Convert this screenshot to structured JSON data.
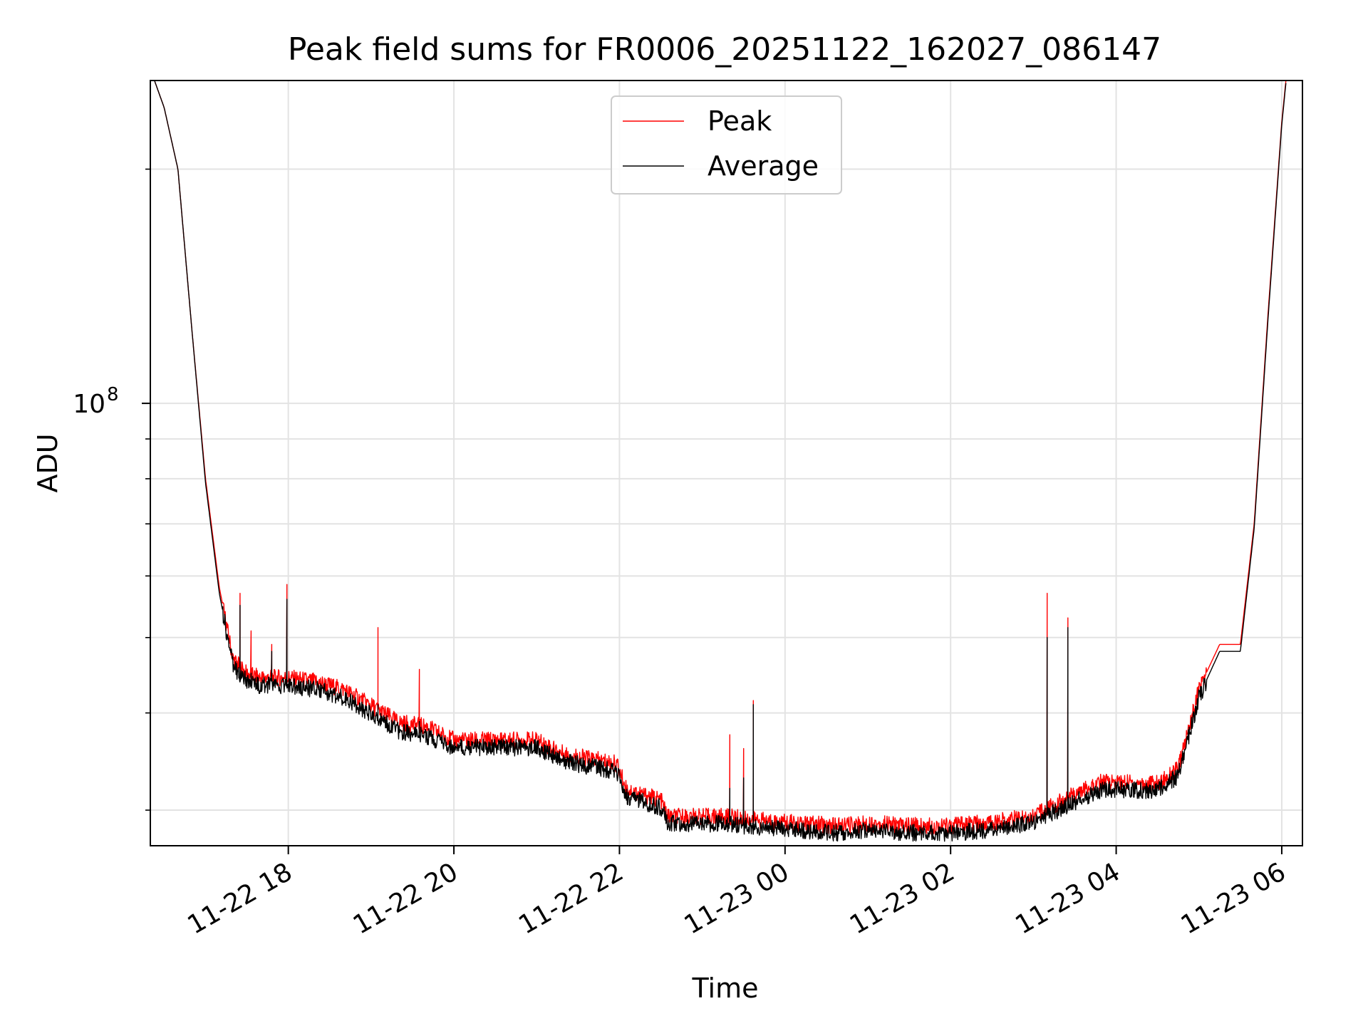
{
  "chart_data": {
    "type": "line",
    "title": "Peak field sums for FR0006_20251122_162027_086147",
    "xlabel": "Time",
    "ylabel": "ADU",
    "y_scale": "log",
    "ylim": [
      27000000,
      260000000
    ],
    "xlim": [
      "2025-11-22 16:20",
      "2025-11-23 06:15"
    ],
    "grid": true,
    "legend_position": "top-center",
    "x_ticks": [
      {
        "time": "2025-11-22 18:00",
        "label": "11-22 18"
      },
      {
        "time": "2025-11-22 20:00",
        "label": "11-22 20"
      },
      {
        "time": "2025-11-22 22:00",
        "label": "11-22 22"
      },
      {
        "time": "2025-11-23 00:00",
        "label": "11-23 00"
      },
      {
        "time": "2025-11-23 02:00",
        "label": "11-23 02"
      },
      {
        "time": "2025-11-23 04:00",
        "label": "11-23 04"
      },
      {
        "time": "2025-11-23 06:00",
        "label": "11-23 06"
      }
    ],
    "y_major_ticks": [
      {
        "value": 100000000,
        "label": "10",
        "exponent": "8"
      }
    ],
    "y_minor_ticks": [
      30000000,
      40000000,
      50000000,
      60000000,
      70000000,
      80000000,
      90000000,
      200000000
    ],
    "series": [
      {
        "name": "Peak",
        "color": "#ff0000",
        "x": [
          "2025-11-22 16:23",
          "2025-11-22 16:30",
          "2025-11-22 16:40",
          "2025-11-22 16:50",
          "2025-11-22 17:00",
          "2025-11-22 17:10",
          "2025-11-22 17:20",
          "2025-11-22 17:30",
          "2025-11-22 17:40",
          "2025-11-22 17:50",
          "2025-11-22 18:00",
          "2025-11-22 18:20",
          "2025-11-22 18:40",
          "2025-11-22 19:00",
          "2025-11-22 19:20",
          "2025-11-22 19:40",
          "2025-11-22 20:00",
          "2025-11-22 20:30",
          "2025-11-22 21:00",
          "2025-11-22 21:20",
          "2025-11-22 21:40",
          "2025-11-22 21:58",
          "2025-11-22 22:05",
          "2025-11-22 22:30",
          "2025-11-22 22:35",
          "2025-11-22 23:00",
          "2025-11-22 23:20",
          "2025-11-22 23:30",
          "2025-11-22 23:40",
          "2025-11-23 00:00",
          "2025-11-23 00:40",
          "2025-11-23 01:00",
          "2025-11-23 01:40",
          "2025-11-23 02:00",
          "2025-11-23 02:30",
          "2025-11-23 03:00",
          "2025-11-23 03:30",
          "2025-11-23 03:50",
          "2025-11-23 04:00",
          "2025-11-23 04:30",
          "2025-11-23 04:45",
          "2025-11-23 05:00",
          "2025-11-23 05:15",
          "2025-11-23 05:30",
          "2025-11-23 05:40",
          "2025-11-23 05:50",
          "2025-11-23 06:00",
          "2025-11-23 06:03"
        ],
        "y": [
          260000000,
          240000000,
          200000000,
          125000000,
          80000000,
          58000000,
          47000000,
          45000000,
          44500000,
          44500000,
          44500000,
          44000000,
          43000000,
          41000000,
          39000000,
          38500000,
          37000000,
          37000000,
          37000000,
          35500000,
          35000000,
          34500000,
          32000000,
          31000000,
          29500000,
          29500000,
          29500000,
          29300000,
          29200000,
          29000000,
          28700000,
          28900000,
          28700000,
          28700000,
          29000000,
          29600000,
          31500000,
          32700000,
          32700000,
          32500000,
          34000000,
          43000000,
          49000000,
          49000000,
          70000000,
          130000000,
          230000000,
          260000000
        ]
      },
      {
        "name": "Average",
        "color": "#000000",
        "x": [
          "2025-11-22 16:23",
          "2025-11-22 16:30",
          "2025-11-22 16:40",
          "2025-11-22 16:50",
          "2025-11-22 17:00",
          "2025-11-22 17:10",
          "2025-11-22 17:20",
          "2025-11-22 17:30",
          "2025-11-22 17:40",
          "2025-11-22 17:50",
          "2025-11-22 18:00",
          "2025-11-22 18:20",
          "2025-11-22 18:40",
          "2025-11-22 19:00",
          "2025-11-22 19:20",
          "2025-11-22 19:40",
          "2025-11-22 20:00",
          "2025-11-22 20:30",
          "2025-11-22 21:00",
          "2025-11-22 21:20",
          "2025-11-22 21:40",
          "2025-11-22 21:58",
          "2025-11-22 22:05",
          "2025-11-22 22:30",
          "2025-11-22 22:35",
          "2025-11-22 23:00",
          "2025-11-22 23:20",
          "2025-11-22 23:30",
          "2025-11-22 23:40",
          "2025-11-23 00:00",
          "2025-11-23 00:40",
          "2025-11-23 01:00",
          "2025-11-23 01:40",
          "2025-11-23 02:00",
          "2025-11-23 02:30",
          "2025-11-23 03:00",
          "2025-11-23 03:30",
          "2025-11-23 03:50",
          "2025-11-23 04:00",
          "2025-11-23 04:30",
          "2025-11-23 04:45",
          "2025-11-23 05:00",
          "2025-11-23 05:15",
          "2025-11-23 05:30",
          "2025-11-23 05:40",
          "2025-11-23 05:50",
          "2025-11-23 06:00",
          "2025-11-23 06:03"
        ],
        "y": [
          260000000,
          240000000,
          200000000,
          125000000,
          79000000,
          57000000,
          46000000,
          44000000,
          43500000,
          43500000,
          43500000,
          43000000,
          42000000,
          40000000,
          38000000,
          37500000,
          36200000,
          36200000,
          36200000,
          34700000,
          34200000,
          33700000,
          31300000,
          30300000,
          28900000,
          28900000,
          28900000,
          28700000,
          28600000,
          28400000,
          28100000,
          28300000,
          28100000,
          28100000,
          28400000,
          29000000,
          30800000,
          32000000,
          32000000,
          31800000,
          33300000,
          42000000,
          48000000,
          48000000,
          69000000,
          128000000,
          228000000,
          258000000
        ]
      }
    ],
    "spikes": [
      {
        "time": "2025-11-22 17:25",
        "peak": 57000000,
        "average": 55000000
      },
      {
        "time": "2025-11-22 17:33",
        "peak": 51000000,
        "average": 45000000
      },
      {
        "time": "2025-11-22 17:48",
        "peak": 49000000,
        "average": 48000000
      },
      {
        "time": "2025-11-22 17:59",
        "peak": 58500000,
        "average": 56000000
      },
      {
        "time": "2025-11-22 19:05",
        "peak": 51500000,
        "average": 41000000
      },
      {
        "time": "2025-11-22 19:35",
        "peak": 45500000,
        "average": 39000000
      },
      {
        "time": "2025-11-22 23:20",
        "peak": 37500000,
        "average": 32000000
      },
      {
        "time": "2025-11-22 23:30",
        "peak": 36000000,
        "average": 33000000
      },
      {
        "time": "2025-11-22 23:37",
        "peak": 41500000,
        "average": 41000000
      },
      {
        "time": "2025-11-23 03:10",
        "peak": 57000000,
        "average": 50000000
      },
      {
        "time": "2025-11-23 03:25",
        "peak": 53000000,
        "average": 51500000
      }
    ]
  }
}
